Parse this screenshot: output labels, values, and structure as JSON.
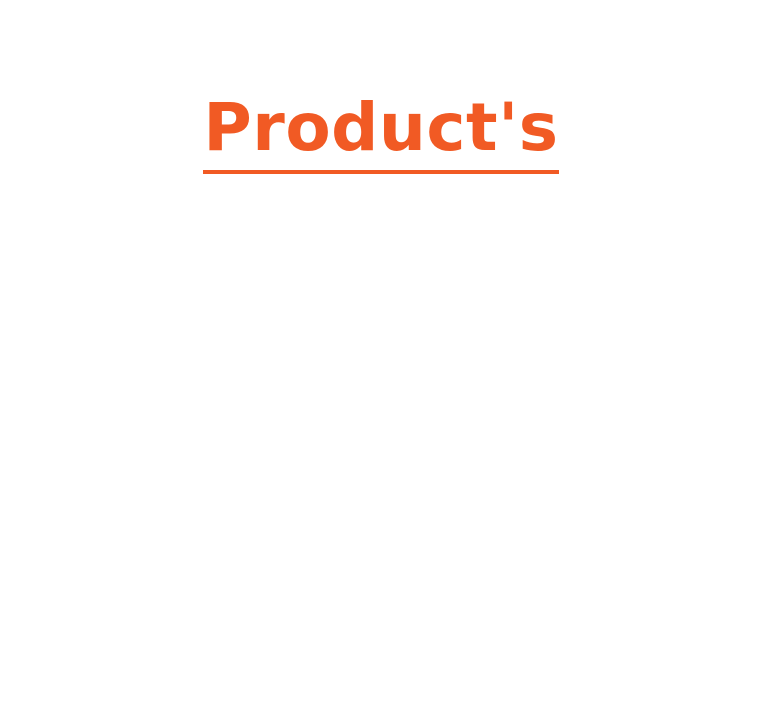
{
  "section": {
    "title": "Product's"
  },
  "colors": {
    "accent": "#f15a24",
    "background": "#ffffff"
  }
}
